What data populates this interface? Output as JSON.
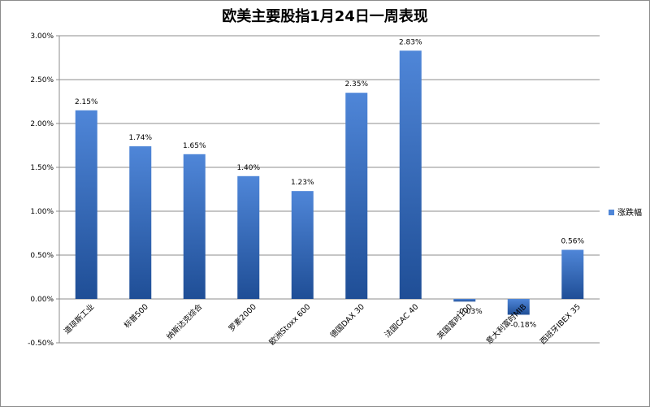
{
  "chart_data": {
    "type": "bar",
    "title": "欧美主要股指1月24日一周表现",
    "categories": [
      "道琼斯工业",
      "标普500",
      "纳斯达克综合",
      "罗素2000",
      "欧洲Stoxx 600",
      "德国DAX 30",
      "法国CAC 40",
      "英国富时100",
      "意大利富时MIB",
      "西班牙IBEX 35"
    ],
    "series": [
      {
        "name": "涨跌幅",
        "values": [
          2.15,
          1.74,
          1.65,
          1.4,
          1.23,
          2.35,
          2.83,
          -0.03,
          -0.18,
          0.56
        ],
        "labels": [
          "2.15%",
          "1.74%",
          "1.65%",
          "1.40%",
          "1.23%",
          "2.35%",
          "2.83%",
          "-0.03%",
          "-0.18%",
          "0.56%"
        ]
      }
    ],
    "ylim": [
      -0.5,
      3.0
    ],
    "yticks": [
      -0.5,
      0.0,
      0.5,
      1.0,
      1.5,
      2.0,
      2.5,
      3.0
    ],
    "ytick_labels": [
      "-0.50%",
      "0.00%",
      "0.50%",
      "1.00%",
      "1.50%",
      "2.00%",
      "2.50%",
      "3.00%"
    ],
    "grid": true,
    "legend": "right",
    "colors": {
      "bar_light": "#4f86d8",
      "bar_dark": "#1f4e96",
      "grid": "#8c8c8c",
      "axis": "#8c8c8c"
    }
  }
}
